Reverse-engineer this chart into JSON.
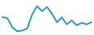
{
  "x": [
    0,
    1,
    2,
    3,
    4,
    5,
    6,
    7,
    8,
    9,
    10,
    11,
    12,
    13,
    14,
    15,
    16,
    17,
    18
  ],
  "y": [
    14.9,
    14.5,
    11.5,
    10.2,
    10.5,
    11.1,
    15.8,
    18.5,
    16.8,
    18.2,
    16.0,
    13.2,
    14.8,
    12.5,
    13.8,
    12.2,
    13.0,
    12.5,
    13.2
  ],
  "line_color": "#3399cc",
  "linewidth": 1.5,
  "ylim": [
    9.0,
    20.5
  ],
  "xlim": [
    -0.5,
    18.5
  ],
  "bg_color": "#ffffff"
}
